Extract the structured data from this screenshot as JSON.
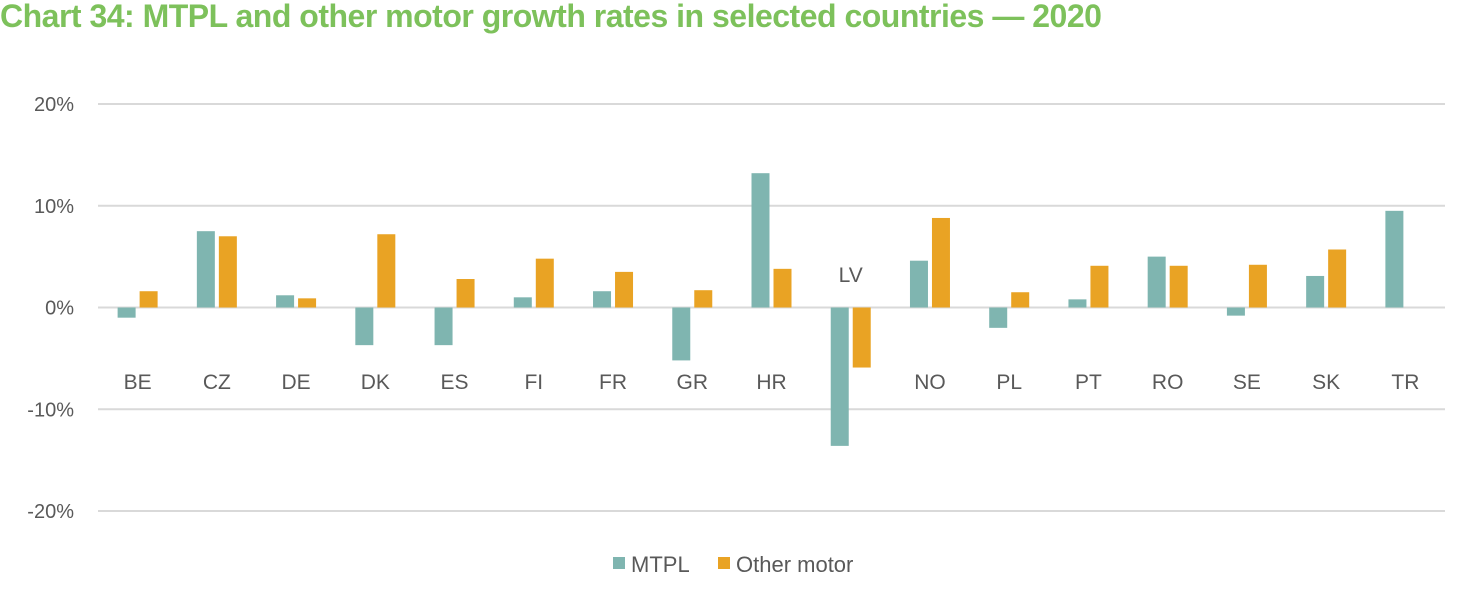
{
  "chart_data": {
    "type": "bar",
    "title": "Chart 34: MTPL and other motor growth rates in selected countries — 2020",
    "xlabel": "",
    "ylabel": "",
    "ylim": [
      -20,
      20
    ],
    "yticks": [
      20,
      10,
      0,
      -10,
      -20
    ],
    "ytick_labels": [
      "20%",
      "10%",
      "0%",
      "-10%",
      "-20%"
    ],
    "grid": true,
    "legend_position": "bottom",
    "categories": [
      "BE",
      "CZ",
      "DE",
      "DK",
      "ES",
      "FI",
      "FR",
      "GR",
      "HR",
      "LV",
      "NO",
      "PL",
      "PT",
      "RO",
      "SE",
      "SK",
      "TR"
    ],
    "series": [
      {
        "name": "MTPL",
        "color": "#7fb5b0",
        "values": [
          -1.0,
          7.5,
          1.2,
          -3.7,
          -3.7,
          1.0,
          1.6,
          -5.2,
          13.2,
          -13.6,
          4.6,
          -2.0,
          0.8,
          5.0,
          -0.8,
          3.1,
          9.5
        ]
      },
      {
        "name": "Other motor",
        "color": "#e9a324",
        "values": [
          1.6,
          7.0,
          0.9,
          7.2,
          2.8,
          4.8,
          3.5,
          1.7,
          3.8,
          -5.9,
          8.8,
          1.5,
          4.1,
          4.1,
          4.2,
          5.7,
          null
        ]
      }
    ]
  }
}
